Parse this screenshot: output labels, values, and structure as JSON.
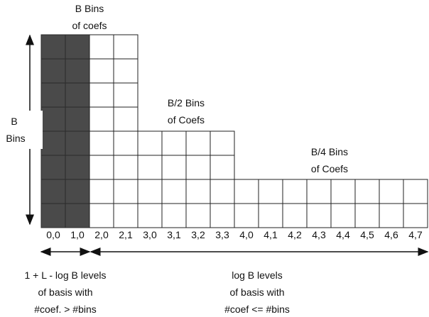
{
  "labels": {
    "top_bins": [
      "B Bins",
      "of coefs"
    ],
    "mid_bins": [
      "B/2 Bins",
      "of Coefs"
    ],
    "right_bins": [
      "B/4 Bins",
      "of Coefs"
    ],
    "left_axis": [
      "B",
      "Bins"
    ],
    "bottom_left": [
      "1 + L - log B levels",
      "of basis with",
      "#coef. > #bins"
    ],
    "bottom_right": [
      "log B levels",
      "of basis with",
      "#coef <= #bins"
    ]
  },
  "columns": [
    {
      "label": "0,0",
      "height": 8,
      "shaded": true
    },
    {
      "label": "1,0",
      "height": 8,
      "shaded": true
    },
    {
      "label": "2,0",
      "height": 8,
      "shaded": false
    },
    {
      "label": "2,1",
      "height": 8,
      "shaded": false
    },
    {
      "label": "3,0",
      "height": 4,
      "shaded": false
    },
    {
      "label": "3,1",
      "height": 4,
      "shaded": false
    },
    {
      "label": "3,2",
      "height": 4,
      "shaded": false
    },
    {
      "label": "3,3",
      "height": 4,
      "shaded": false
    },
    {
      "label": "4,0",
      "height": 2,
      "shaded": false
    },
    {
      "label": "4,1",
      "height": 2,
      "shaded": false
    },
    {
      "label": "4,2",
      "height": 2,
      "shaded": false
    },
    {
      "label": "4,3",
      "height": 2,
      "shaded": false
    },
    {
      "label": "4,4",
      "height": 2,
      "shaded": false
    },
    {
      "label": "4,5",
      "height": 2,
      "shaded": false
    },
    {
      "label": "4,6",
      "height": 2,
      "shaded": false
    },
    {
      "label": "4,7",
      "height": 2,
      "shaded": false
    }
  ],
  "colors": {
    "shaded": "#4a4a4a",
    "line": "#222222",
    "background": "#ffffff"
  }
}
